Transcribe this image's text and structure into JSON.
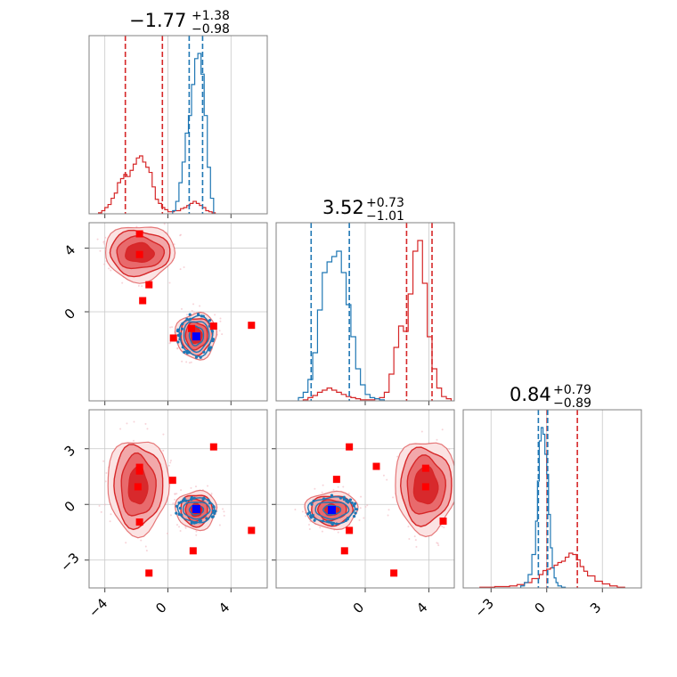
{
  "colors": {
    "red": "#d62728",
    "blue": "#1f77b4",
    "red_fill": "#e8888a",
    "marker_red": "#ff0000",
    "marker_blue": "#0000ff"
  },
  "chart_data": {
    "type": "corner",
    "grid": true,
    "parameters": [
      {
        "median": "−1.77",
        "plus": "+1.38",
        "minus": "−0.98",
        "range": [
          -5,
          6.3
        ],
        "ticks": [
          -4,
          0,
          4
        ],
        "ticklabels": [
          "−4",
          "0",
          "4"
        ]
      },
      {
        "median": "3.52",
        "plus": "+0.73",
        "minus": "−1.01",
        "range": [
          -5.6,
          5.6
        ],
        "ticks": [
          0,
          4
        ],
        "ticklabels": [
          "0",
          "4"
        ]
      },
      {
        "median": "0.84",
        "plus": "+0.79",
        "minus": "−0.89",
        "range": [
          -4.5,
          5.1
        ],
        "ticks": [
          -3,
          0,
          3
        ],
        "ticklabels": [
          "−3",
          "0",
          "3"
        ]
      }
    ],
    "diagonal": [
      {
        "red_quantiles": [
          -2.7,
          -0.35
        ],
        "blue_quantiles": [
          1.35,
          2.2
        ],
        "red_hist": {
          "bins": [
            -4.4,
            -4.2,
            -4.0,
            -3.8,
            -3.6,
            -3.4,
            -3.2,
            -3.0,
            -2.8,
            -2.6,
            -2.4,
            -2.2,
            -2.0,
            -1.8,
            -1.6,
            -1.4,
            -1.2,
            -1.0,
            -0.8,
            -0.6,
            -0.4,
            -0.2,
            0.0,
            0.2,
            0.4,
            0.6,
            0.8,
            1.0,
            1.2,
            1.4,
            1.6,
            1.8,
            2.0,
            2.2,
            2.4,
            2.6,
            2.8,
            3.0
          ],
          "counts": [
            1,
            3,
            6,
            9,
            15,
            20,
            30,
            34,
            38,
            36,
            42,
            48,
            54,
            56,
            50,
            45,
            40,
            26,
            14,
            10,
            6,
            4,
            2,
            2,
            3,
            3,
            5,
            6,
            8,
            10,
            12,
            10,
            8,
            6,
            3,
            2,
            1
          ]
        },
        "blue_hist": {
          "bins": [
            0.3,
            0.5,
            0.7,
            0.9,
            1.1,
            1.3,
            1.5,
            1.7,
            1.9,
            2.1,
            2.3,
            2.5,
            2.7,
            2.9
          ],
          "counts": [
            3,
            12,
            30,
            50,
            78,
            95,
            125,
            150,
            155,
            135,
            95,
            45,
            15
          ]
        }
      },
      {
        "red_quantiles": [
          2.6,
          4.2
        ],
        "blue_quantiles": [
          -3.4,
          -1.0
        ],
        "red_hist": {
          "bins": [
            -3.9,
            -3.6,
            -3.3,
            -3.0,
            -2.7,
            -2.4,
            -2.1,
            -1.8,
            -1.5,
            -1.2,
            -0.9,
            -0.6,
            -0.3,
            0.0,
            0.3,
            0.6,
            0.9,
            1.2,
            1.5,
            1.8,
            2.1,
            2.4,
            2.7,
            3.0,
            3.3,
            3.6,
            3.9,
            4.2,
            4.5,
            4.8,
            5.1,
            5.4
          ],
          "counts": [
            1,
            3,
            5,
            8,
            10,
            12,
            10,
            8,
            6,
            4,
            3,
            2,
            1,
            1,
            1,
            2,
            3,
            8,
            25,
            50,
            70,
            65,
            100,
            140,
            150,
            110,
            60,
            30,
            12,
            4,
            2
          ]
        },
        "blue_hist": {
          "bins": [
            -4.2,
            -3.9,
            -3.6,
            -3.3,
            -3.0,
            -2.7,
            -2.4,
            -2.1,
            -1.8,
            -1.5,
            -1.2,
            -0.9,
            -0.6,
            -0.3,
            0.0,
            0.3,
            0.6,
            0.9,
            1.2
          ],
          "counts": [
            3,
            8,
            20,
            45,
            85,
            120,
            130,
            135,
            140,
            120,
            90,
            60,
            30,
            15,
            6,
            3,
            2,
            1
          ]
        }
      },
      {
        "red_quantiles": [
          0.02,
          1.65
        ],
        "blue_quantiles": [
          -0.45,
          0.05
        ],
        "red_hist": {
          "bins": [
            -3.6,
            -3.2,
            -2.8,
            -2.4,
            -2.0,
            -1.6,
            -1.2,
            -0.8,
            -0.4,
            -0.2,
            0.0,
            0.2,
            0.4,
            0.6,
            0.8,
            1.0,
            1.2,
            1.4,
            1.6,
            1.8,
            2.0,
            2.2,
            2.6,
            3.0,
            3.4,
            3.8,
            4.2
          ],
          "counts": [
            1,
            1,
            2,
            2,
            3,
            5,
            8,
            14,
            20,
            26,
            28,
            30,
            34,
            38,
            40,
            46,
            52,
            50,
            42,
            32,
            25,
            18,
            10,
            6,
            3,
            1
          ]
        },
        "blue_hist": {
          "bins": [
            -1.4,
            -1.2,
            -1.0,
            -0.8,
            -0.6,
            -0.5,
            -0.4,
            -0.3,
            -0.2,
            -0.1,
            0.0,
            0.1,
            0.2,
            0.3,
            0.4,
            0.5,
            0.6,
            0.8,
            1.0
          ],
          "counts": [
            3,
            8,
            20,
            50,
            100,
            160,
            220,
            240,
            230,
            200,
            170,
            110,
            60,
            30,
            15,
            8,
            3,
            1
          ]
        }
      }
    ],
    "off_diagonal": [
      {
        "row": 1,
        "col": 0,
        "red_blobs": [
          {
            "cx": -1.8,
            "cy": 3.7,
            "rx": [
              0.9,
              1.5,
              1.9,
              2.2
            ],
            "ry": [
              0.6,
              1.0,
              1.4,
              1.75
            ]
          },
          {
            "cx": 1.8,
            "cy": -1.5,
            "rx": [
              0.35,
              0.7,
              1.0,
              1.3
            ],
            "ry": [
              0.5,
              0.85,
              1.15,
              1.45
            ]
          }
        ],
        "blue_blob": {
          "cx": 1.8,
          "cy": -1.5,
          "rx": [
            0.45,
            0.8,
            1.05
          ],
          "ry": [
            0.6,
            0.95,
            1.25
          ]
        },
        "red_markers": [
          [
            -1.8,
            4.9
          ],
          [
            -1.8,
            3.6
          ],
          [
            -1.2,
            1.7
          ],
          [
            -1.6,
            0.7
          ],
          [
            1.5,
            -1.05
          ],
          [
            2.9,
            -0.9
          ],
          [
            0.35,
            -1.65
          ],
          [
            5.3,
            -0.85
          ]
        ],
        "blue_marker": [
          1.8,
          -1.55
        ]
      },
      {
        "row": 2,
        "col": 0,
        "red_blobs": [
          {
            "cx": -1.9,
            "cy": 1.0,
            "rx": [
              0.6,
              1.1,
              1.55,
              1.95
            ],
            "ry": [
              1.0,
              1.65,
              2.2,
              2.55
            ]
          },
          {
            "cx": 1.8,
            "cy": -0.3,
            "rx": [
              0.35,
              0.7,
              1.0,
              1.3
            ],
            "ry": [
              0.35,
              0.6,
              0.85,
              1.05
            ]
          }
        ],
        "blue_blob": {
          "cx": 1.8,
          "cy": -0.3,
          "rx": [
            0.45,
            0.85,
            1.15
          ],
          "ry": [
            0.25,
            0.45,
            0.65
          ]
        },
        "red_markers": [
          [
            -1.8,
            2.0
          ],
          [
            -1.8,
            1.8
          ],
          [
            -1.9,
            0.95
          ],
          [
            0.3,
            1.3
          ],
          [
            2.9,
            3.1
          ],
          [
            1.9,
            -0.3
          ],
          [
            -1.8,
            -0.95
          ],
          [
            5.3,
            -1.4
          ],
          [
            1.6,
            -2.5
          ],
          [
            -1.2,
            -3.7
          ]
        ],
        "blue_marker": [
          1.8,
          -0.25
        ]
      },
      {
        "row": 2,
        "col": 1,
        "red_blobs": [
          {
            "cx": 3.8,
            "cy": 1.0,
            "rx": [
              0.75,
              1.2,
              1.6,
              1.95
            ],
            "ry": [
              1.0,
              1.55,
              2.05,
              2.5
            ]
          },
          {
            "cx": -2.1,
            "cy": -0.3,
            "rx": [
              0.45,
              0.9,
              1.3,
              1.65
            ],
            "ry": [
              0.3,
              0.55,
              0.8,
              1.0
            ]
          }
        ],
        "blue_blob": {
          "cx": -2.1,
          "cy": -0.3,
          "rx": [
            0.55,
            1.05,
            1.45
          ],
          "ry": [
            0.25,
            0.45,
            0.7
          ]
        },
        "red_markers": [
          [
            -1.0,
            3.1
          ],
          [
            0.7,
            2.05
          ],
          [
            3.8,
            1.95
          ],
          [
            -1.8,
            1.35
          ],
          [
            3.8,
            0.95
          ],
          [
            -2.1,
            -0.3
          ],
          [
            -1.0,
            -1.4
          ],
          [
            4.9,
            -0.9
          ],
          [
            -1.3,
            -2.5
          ],
          [
            1.8,
            -3.7
          ]
        ],
        "blue_marker": [
          -2.1,
          -0.3
        ]
      }
    ]
  }
}
